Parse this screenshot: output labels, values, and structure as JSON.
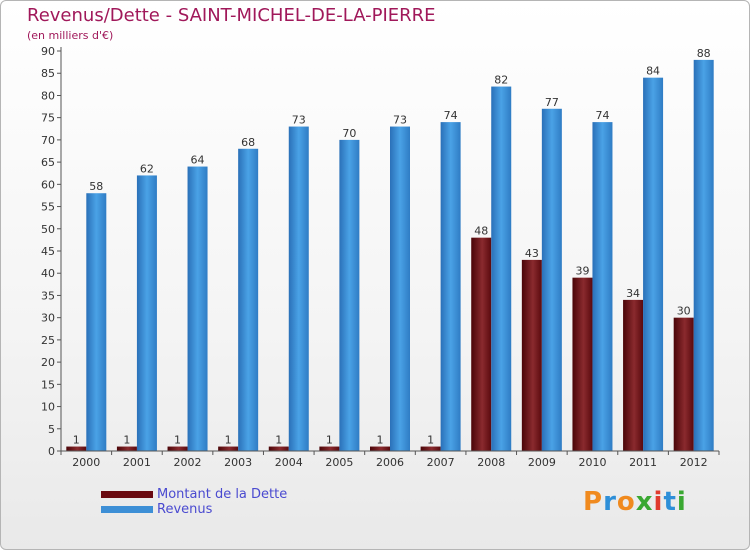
{
  "chart_data": {
    "type": "bar",
    "title": "Revenus/Dette - SAINT-MICHEL-DE-LA-PIERRE",
    "subtitle": "(en milliers d'€)",
    "categories": [
      "2000",
      "2001",
      "2002",
      "2003",
      "2004",
      "2005",
      "2006",
      "2007",
      "2008",
      "2009",
      "2010",
      "2011",
      "2012"
    ],
    "series": [
      {
        "name": "Montant de la Dette",
        "color": "#7a0f14",
        "values": [
          1,
          1,
          1,
          1,
          1,
          1,
          1,
          1,
          48,
          43,
          39,
          34,
          30
        ]
      },
      {
        "name": "Revenus",
        "color": "#3d8fd6",
        "values": [
          58,
          62,
          64,
          68,
          73,
          70,
          73,
          74,
          82,
          77,
          74,
          84,
          88
        ]
      }
    ],
    "ylim": [
      0,
      90
    ],
    "yticks": [
      0,
      5,
      10,
      15,
      20,
      25,
      30,
      35,
      40,
      45,
      50,
      55,
      60,
      65,
      70,
      75,
      80,
      85,
      90
    ],
    "grid": false,
    "legend_position": "bottom-left"
  },
  "logo": {
    "letters": [
      "P",
      "r",
      "o",
      "x",
      "i",
      "t",
      "i"
    ],
    "colors": [
      "#f08a1e",
      "#2e8fd8",
      "#f08a1e",
      "#3aa832",
      "#e03a2e",
      "#2e8fd8",
      "#3aa832"
    ]
  }
}
